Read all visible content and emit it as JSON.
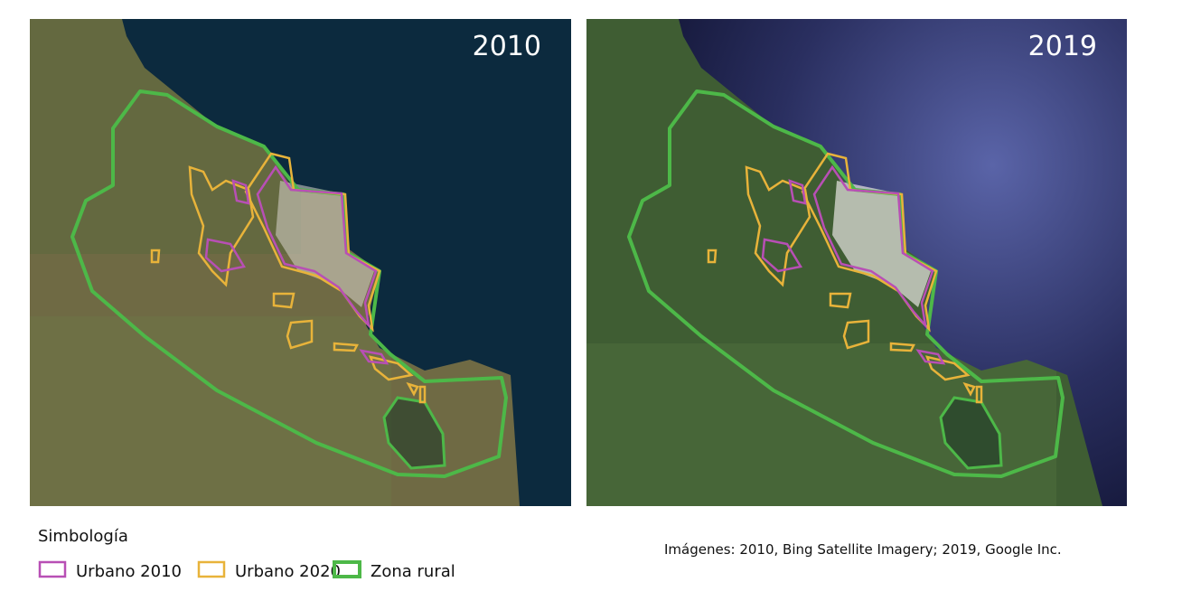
{
  "panels": [
    {
      "label": "2010"
    },
    {
      "label": "2019"
    }
  ],
  "legend": {
    "title": "Simbología",
    "items": [
      {
        "label": "Urbano 2010",
        "color": "#b84fb5"
      },
      {
        "label": "Urbano 2020",
        "color": "#e8b33a"
      },
      {
        "label": "Zona rural",
        "color": "#4db848"
      }
    ]
  },
  "credit": "Imágenes: 2010, Bing Satellite Imagery; 2019, Google Inc."
}
